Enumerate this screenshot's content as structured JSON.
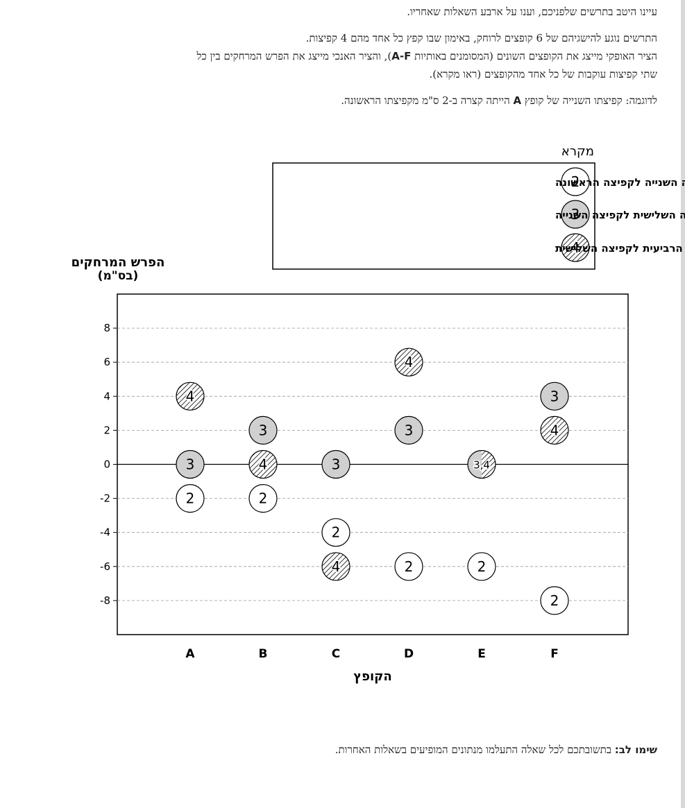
{
  "intro": {
    "line1": "עיינו היטב בתרשים שלפניכם, וענו על ארבע השאלות שאחריו.",
    "line2": "התרשים נוגע להישגיהם של 6 קופצים לרוחק, באימון שבו קפץ כל אחד מהם 4 קפיצות.",
    "line3_a": "הציר האופקי מייצג את הקופצים השונים (המסומנים באותיות ",
    "line3_b": "A-F",
    "line3_c": "), והציר האנכי מייצג את הפרש המרחקים בין כל",
    "line4": "שתי קפיצות עוקבות של כל אחד מהקופצים (ראו מקרא).",
    "example_a": "לדוגמה: קפיצתו השנייה של קופץ ",
    "example_b": "A",
    "example_c": " הייתה קצרה ב-2 ס\"מ מקפיצתו הראשונה."
  },
  "note": {
    "label": "שימו לב:",
    "text": " בתשובתכם לכל שאלה התעלמו מנתונים המופיעים בשאלות האחרות."
  },
  "colors": {
    "marker2": "#ffffff",
    "marker3": "#d0d0d0",
    "marker4": "hatched",
    "grid": "#9a9a9a",
    "frame": "#000000"
  },
  "chart_data": {
    "type": "scatter",
    "ylabel_line1": "הפרש המרחקים",
    "ylabel_line2": "(בס\"מ)",
    "xlabel": "הקופץ",
    "categories": [
      "A",
      "B",
      "C",
      "D",
      "E",
      "F"
    ],
    "ylim": [
      -10,
      10
    ],
    "yticks": [
      8,
      6,
      4,
      2,
      0,
      -2,
      -4,
      -6,
      -8
    ],
    "ytick_labels": [
      "8",
      "6",
      "4",
      "2",
      "0",
      "-2",
      "-4",
      "-6",
      "-8"
    ],
    "grid": "horizontal dashed",
    "legend": {
      "title": "מקרא",
      "placement": "top-right",
      "entries": [
        {
          "symbol": "2",
          "style": "white",
          "label": "ההפרש בין הקפיצה השנייה לקפיצה הראשונה"
        },
        {
          "symbol": "3",
          "style": "gray",
          "label": "ההפרש בין הקפיצה השלישית לקפיצה השנייה"
        },
        {
          "symbol": "4",
          "style": "hatched",
          "label": "ההפרש בין הקפיצה הרביעית לקפיצה השלישית"
        }
      ]
    },
    "points": [
      {
        "x": "A",
        "y": -2,
        "label": "2",
        "style": "white"
      },
      {
        "x": "A",
        "y": 0,
        "label": "3",
        "style": "gray"
      },
      {
        "x": "A",
        "y": 4,
        "label": "4",
        "style": "hatched"
      },
      {
        "x": "B",
        "y": -2,
        "label": "2",
        "style": "white"
      },
      {
        "x": "B",
        "y": 2,
        "label": "3",
        "style": "gray"
      },
      {
        "x": "B",
        "y": 0,
        "label": "4",
        "style": "hatched"
      },
      {
        "x": "C",
        "y": -4,
        "label": "2",
        "style": "white"
      },
      {
        "x": "C",
        "y": 0,
        "label": "3",
        "style": "gray"
      },
      {
        "x": "C",
        "y": -6,
        "label": "4",
        "style": "hatched"
      },
      {
        "x": "D",
        "y": -6,
        "label": "2",
        "style": "white"
      },
      {
        "x": "D",
        "y": 2,
        "label": "3",
        "style": "gray"
      },
      {
        "x": "D",
        "y": 6,
        "label": "4",
        "style": "hatched"
      },
      {
        "x": "E",
        "y": -6,
        "label": "2",
        "style": "white"
      },
      {
        "x": "E",
        "y": 0,
        "label": "3,4",
        "style": "split"
      },
      {
        "x": "F",
        "y": -8,
        "label": "2",
        "style": "white"
      },
      {
        "x": "F",
        "y": 4,
        "label": "3",
        "style": "gray"
      },
      {
        "x": "F",
        "y": 2,
        "label": "4",
        "style": "hatched"
      }
    ]
  }
}
